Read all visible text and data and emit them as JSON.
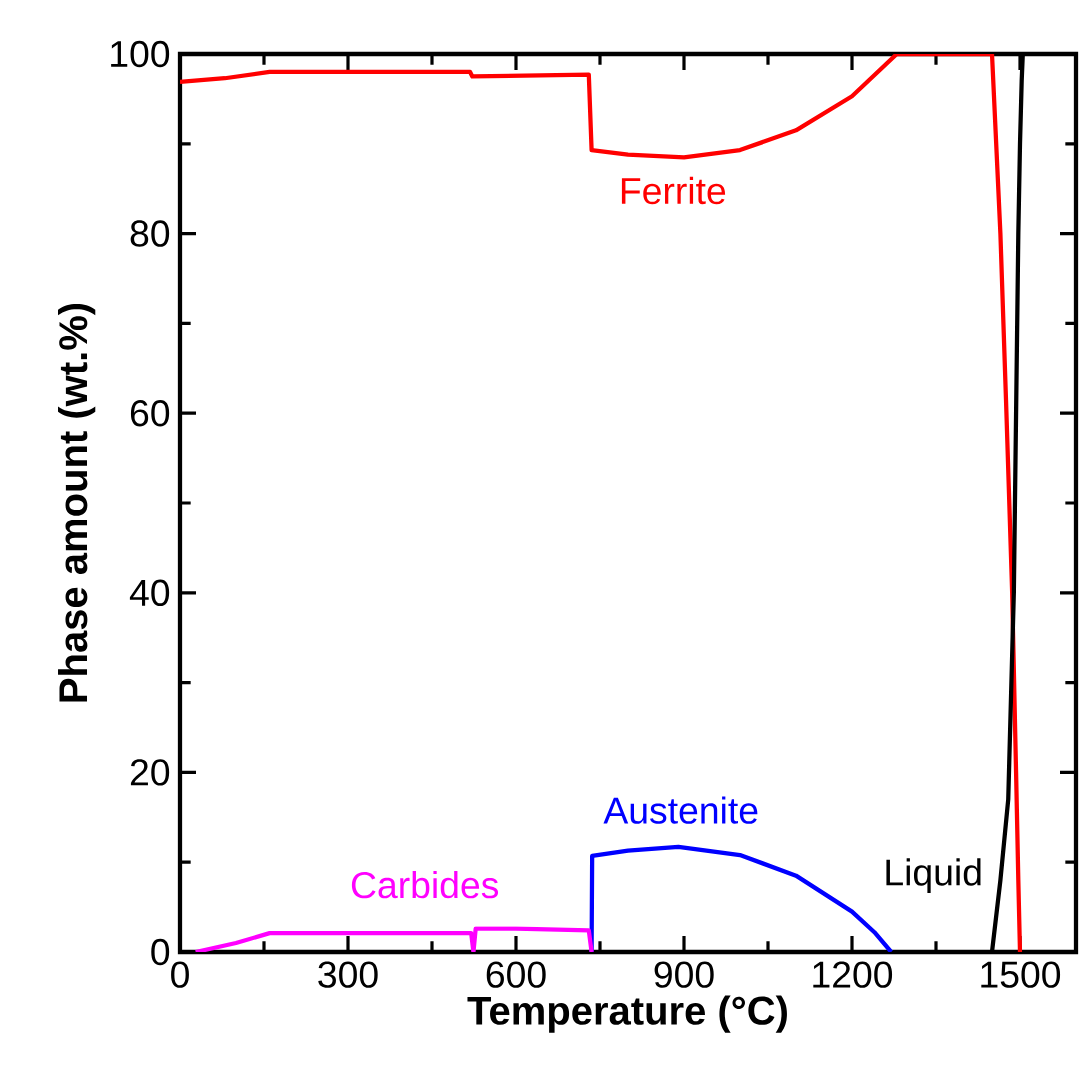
{
  "chart_data": {
    "type": "line",
    "xlabel": "Temperature (°C)",
    "ylabel": "Phase amount (wt.%)",
    "xlim": [
      0,
      1600
    ],
    "ylim": [
      0,
      100
    ],
    "xticks": [
      0,
      300,
      600,
      900,
      1200,
      1500
    ],
    "yticks": [
      0,
      20,
      40,
      60,
      80,
      100
    ],
    "grid": false,
    "marker": "none",
    "line_style": "solid",
    "series": [
      {
        "name": "Ferrite",
        "color": "#ff0000",
        "x": [
          0,
          80,
          160,
          518,
          522,
          730,
          735,
          800,
          900,
          1000,
          1100,
          1200,
          1280,
          1450,
          1465,
          1475,
          1486,
          1493,
          1497,
          1500
        ],
        "values": [
          96.9,
          97.3,
          98,
          98,
          97.5,
          97.7,
          89.3,
          88.8,
          88.5,
          89.3,
          91.5,
          95.3,
          100,
          100,
          80,
          61.5,
          40,
          20,
          8,
          0
        ]
      },
      {
        "name": "Austenite",
        "color": "#0000ff",
        "x": [
          735,
          736,
          800,
          890,
          1000,
          1100,
          1200,
          1240,
          1270
        ],
        "values": [
          0,
          10.7,
          11.3,
          11.7,
          10.8,
          8.5,
          4.5,
          2.2,
          0
        ]
      },
      {
        "name": "Carbides",
        "color": "#ff00ff",
        "x": [
          28,
          100,
          160,
          520,
          524,
          528,
          600,
          730,
          735
        ],
        "values": [
          0,
          1,
          2.1,
          2.1,
          0,
          2.6,
          2.6,
          2.4,
          0
        ]
      },
      {
        "name": "Liquid",
        "color": "#000000",
        "x": [
          1450,
          1465,
          1479,
          1489,
          1493,
          1497,
          1500,
          1503,
          1505
        ],
        "values": [
          0,
          8,
          17,
          40,
          60,
          80,
          90,
          97,
          100
        ]
      }
    ]
  }
}
